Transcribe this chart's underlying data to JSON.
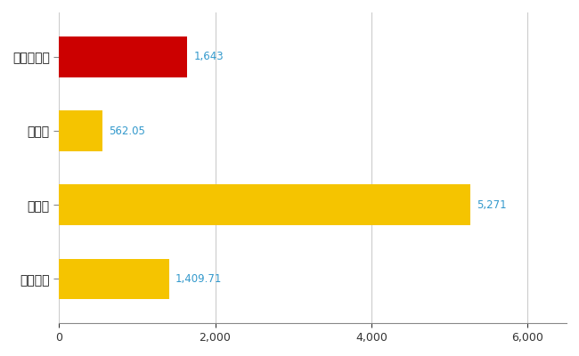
{
  "categories": [
    "大和郡山市",
    "県平均",
    "県最大",
    "全国平均"
  ],
  "values": [
    1643,
    562.05,
    5271,
    1409.71
  ],
  "labels": [
    "1,643",
    "562.05",
    "5,271",
    "1,409.71"
  ],
  "bar_colors": [
    "#cc0000",
    "#f5c400",
    "#f5c400",
    "#f5c400"
  ],
  "label_color": "#3399cc",
  "xlim": [
    0,
    6500
  ],
  "xticks": [
    0,
    2000,
    4000,
    6000
  ],
  "background_color": "#ffffff",
  "grid_color": "#cccccc",
  "bar_height": 0.55
}
